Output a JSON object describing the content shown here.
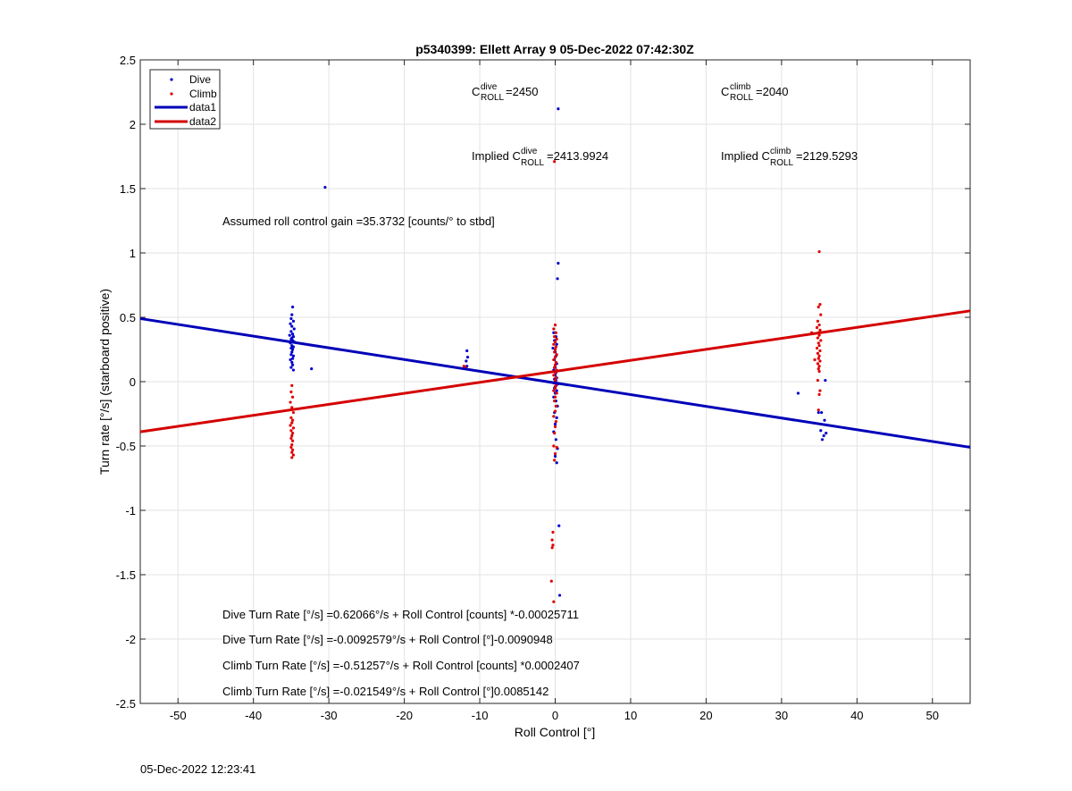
{
  "chart_data": {
    "type": "scatter",
    "title": "p5340399: Ellett Array 9 05-Dec-2022 07:42:30Z",
    "xlabel": "Roll Control [°]",
    "ylabel": "Turn rate [°/s] (starboard positive)",
    "xlim": [
      -55,
      55
    ],
    "ylim": [
      -2.5,
      2.5
    ],
    "xticks": [
      -50,
      -40,
      -30,
      -20,
      -10,
      0,
      10,
      20,
      30,
      40,
      50
    ],
    "xtick_labels": [
      "-50",
      "-40",
      "-30",
      "-20",
      "-10",
      "0",
      "10",
      "20",
      "30",
      "40",
      "50"
    ],
    "yticks": [
      2.5,
      2,
      1.5,
      1,
      0.5,
      0,
      -0.5,
      -1,
      -1.5,
      -2,
      -2.5
    ],
    "ytick_labels": [
      "2.5",
      "2",
      "1.5",
      "1",
      "0.5",
      "0",
      "-0.5",
      "-1",
      "-1.5",
      "-2",
      "-2.5"
    ],
    "grid": true,
    "legend_position": "top-left",
    "legend": [
      {
        "label": "Dive",
        "kind": "dot",
        "color": "#0000cc"
      },
      {
        "label": "Climb",
        "kind": "dot",
        "color": "#e00000"
      },
      {
        "label": "data1",
        "kind": "line",
        "color": "#0000b8"
      },
      {
        "label": "data2",
        "kind": "line",
        "color": "#d40000"
      }
    ],
    "series": [
      {
        "name": "Dive",
        "color": "#0000cc",
        "points": [
          [
            -34.8,
            0.58
          ],
          [
            -34.9,
            0.52
          ],
          [
            -35.0,
            0.49
          ],
          [
            -34.7,
            0.47
          ],
          [
            -35.1,
            0.45
          ],
          [
            -34.9,
            0.43
          ],
          [
            -34.6,
            0.41
          ],
          [
            -35.0,
            0.39
          ],
          [
            -34.8,
            0.37
          ],
          [
            -35.2,
            0.36
          ],
          [
            -34.7,
            0.35
          ],
          [
            -34.9,
            0.34
          ],
          [
            -35.0,
            0.33
          ],
          [
            -34.8,
            0.32
          ],
          [
            -34.6,
            0.31
          ],
          [
            -35.1,
            0.3
          ],
          [
            -34.9,
            0.28
          ],
          [
            -34.7,
            0.27
          ],
          [
            -35.0,
            0.26
          ],
          [
            -34.8,
            0.25
          ],
          [
            -34.9,
            0.23
          ],
          [
            -35.0,
            0.21
          ],
          [
            -34.7,
            0.2
          ],
          [
            -34.8,
            0.18
          ],
          [
            -35.1,
            0.17
          ],
          [
            -34.9,
            0.15
          ],
          [
            -34.8,
            0.13
          ],
          [
            -35.0,
            0.11
          ],
          [
            -34.7,
            0.09
          ],
          [
            -32.3,
            0.1
          ],
          [
            -30.5,
            1.51
          ],
          [
            -11.7,
            0.24
          ],
          [
            -11.6,
            0.19
          ],
          [
            -11.8,
            0.16
          ],
          [
            -11.7,
            0.12
          ],
          [
            0.4,
            2.12
          ],
          [
            0.4,
            0.92
          ],
          [
            0.3,
            0.8
          ],
          [
            -0.2,
            0.38
          ],
          [
            0.1,
            0.35
          ],
          [
            -0.1,
            0.32
          ],
          [
            0.2,
            0.29
          ],
          [
            -0.3,
            0.26
          ],
          [
            0.0,
            0.23
          ],
          [
            0.1,
            0.2
          ],
          [
            -0.1,
            0.17
          ],
          [
            0.2,
            0.14
          ],
          [
            0.0,
            0.11
          ],
          [
            -0.2,
            0.09
          ],
          [
            0.1,
            0.07
          ],
          [
            0.0,
            0.05
          ],
          [
            0.2,
            0.03
          ],
          [
            -0.1,
            0.02
          ],
          [
            0.1,
            0.01
          ],
          [
            0.0,
            0.0
          ],
          [
            -0.2,
            -0.01
          ],
          [
            0.3,
            -0.02
          ],
          [
            0.1,
            -0.03
          ],
          [
            0.0,
            -0.04
          ],
          [
            -0.1,
            -0.05
          ],
          [
            0.2,
            -0.07
          ],
          [
            0.0,
            -0.09
          ],
          [
            -0.2,
            -0.12
          ],
          [
            0.1,
            -0.15
          ],
          [
            0.3,
            -0.19
          ],
          [
            -0.1,
            -0.24
          ],
          [
            0.2,
            -0.28
          ],
          [
            0.0,
            -0.33
          ],
          [
            -0.2,
            -0.39
          ],
          [
            0.1,
            -0.45
          ],
          [
            0.3,
            -0.52
          ],
          [
            0.0,
            -0.58
          ],
          [
            0.2,
            -0.63
          ],
          [
            0.5,
            -1.12
          ],
          [
            0.6,
            -1.66
          ],
          [
            32.2,
            -0.09
          ],
          [
            35.8,
            0.01
          ],
          [
            35.3,
            -0.24
          ],
          [
            35.7,
            -0.3
          ],
          [
            34.9,
            -0.24
          ],
          [
            35.9,
            -0.4
          ],
          [
            35.6,
            -0.42
          ],
          [
            35.4,
            -0.45
          ],
          [
            35.2,
            -0.38
          ]
        ]
      },
      {
        "name": "Climb",
        "color": "#e00000",
        "points": [
          [
            -34.9,
            -0.03
          ],
          [
            -35.0,
            -0.08
          ],
          [
            -34.8,
            -0.12
          ],
          [
            -35.1,
            -0.16
          ],
          [
            -34.9,
            -0.2
          ],
          [
            -34.7,
            -0.24
          ],
          [
            -35.0,
            -0.28
          ],
          [
            -34.8,
            -0.3
          ],
          [
            -34.9,
            -0.32
          ],
          [
            -35.1,
            -0.34
          ],
          [
            -34.7,
            -0.36
          ],
          [
            -35.0,
            -0.38
          ],
          [
            -34.8,
            -0.4
          ],
          [
            -34.9,
            -0.42
          ],
          [
            -35.0,
            -0.44
          ],
          [
            -34.8,
            -0.46
          ],
          [
            -34.9,
            -0.49
          ],
          [
            -35.0,
            -0.51
          ],
          [
            -34.8,
            -0.53
          ],
          [
            -34.9,
            -0.55
          ],
          [
            -34.7,
            -0.57
          ],
          [
            -34.9,
            -0.59
          ],
          [
            -12.1,
            0.12
          ],
          [
            -11.9,
            0.11
          ],
          [
            0.0,
            0.44
          ],
          [
            -0.2,
            0.41
          ],
          [
            0.1,
            0.38
          ],
          [
            -0.1,
            0.35
          ],
          [
            0.2,
            0.33
          ],
          [
            0.0,
            0.31
          ],
          [
            -0.2,
            0.29
          ],
          [
            0.1,
            0.27
          ],
          [
            0.0,
            0.25
          ],
          [
            -0.1,
            0.23
          ],
          [
            0.2,
            0.21
          ],
          [
            0.0,
            0.19
          ],
          [
            -0.2,
            0.17
          ],
          [
            0.1,
            0.15
          ],
          [
            0.0,
            0.13
          ],
          [
            -0.1,
            0.11
          ],
          [
            0.2,
            0.09
          ],
          [
            0.0,
            0.07
          ],
          [
            -0.2,
            0.05
          ],
          [
            0.1,
            0.03
          ],
          [
            0.0,
            0.01
          ],
          [
            -0.1,
            -0.01
          ],
          [
            0.1,
            -0.03
          ],
          [
            0.0,
            -0.05
          ],
          [
            -0.2,
            -0.07
          ],
          [
            0.2,
            -0.09
          ],
          [
            0.0,
            -0.12
          ],
          [
            -0.1,
            -0.15
          ],
          [
            0.1,
            -0.19
          ],
          [
            0.0,
            -0.23
          ],
          [
            -0.2,
            -0.27
          ],
          [
            0.1,
            -0.31
          ],
          [
            0.0,
            -0.35
          ],
          [
            -0.1,
            -0.4
          ],
          [
            -0.1,
            1.71
          ],
          [
            -0.2,
            -0.5
          ],
          [
            0.2,
            -0.51
          ],
          [
            0.0,
            -0.56
          ],
          [
            -0.1,
            -0.61
          ],
          [
            -0.3,
            -1.17
          ],
          [
            -0.4,
            -1.23
          ],
          [
            -0.3,
            -1.27
          ],
          [
            -0.4,
            -1.29
          ],
          [
            -0.5,
            -1.55
          ],
          [
            -0.2,
            -1.71
          ],
          [
            35.0,
            1.01
          ],
          [
            35.1,
            0.6
          ],
          [
            34.9,
            0.58
          ],
          [
            35.2,
            0.52
          ],
          [
            34.8,
            0.47
          ],
          [
            35.0,
            0.44
          ],
          [
            34.7,
            0.42
          ],
          [
            35.1,
            0.4
          ],
          [
            34.9,
            0.38
          ],
          [
            35.0,
            0.36
          ],
          [
            34.8,
            0.34
          ],
          [
            35.2,
            0.32
          ],
          [
            34.9,
            0.3
          ],
          [
            35.0,
            0.28
          ],
          [
            34.7,
            0.26
          ],
          [
            35.1,
            0.24
          ],
          [
            34.8,
            0.22
          ],
          [
            35.0,
            0.2
          ],
          [
            34.9,
            0.18
          ],
          [
            35.1,
            0.16
          ],
          [
            34.8,
            0.14
          ],
          [
            35.0,
            0.12
          ],
          [
            34.9,
            0.1
          ],
          [
            35.0,
            0.08
          ],
          [
            34.4,
            0.17
          ],
          [
            34.0,
            0.38
          ],
          [
            34.8,
            0.01
          ],
          [
            35.1,
            -0.07
          ],
          [
            35.0,
            -0.1
          ],
          [
            34.9,
            -0.22
          ]
        ]
      },
      {
        "name": "data1",
        "type": "line",
        "color": "#0000b8",
        "x": [
          -55,
          55
        ],
        "y": [
          0.49,
          -0.51
        ]
      },
      {
        "name": "data2",
        "type": "line",
        "color": "#d40000",
        "x": [
          -55,
          55
        ],
        "y": [
          -0.39,
          0.55
        ]
      }
    ],
    "annotations": {
      "cdive": {
        "prefix": "C",
        "sup": "dive",
        "sub": "ROLL",
        "value": "=2450"
      },
      "cclimb": {
        "prefix": "C",
        "sup": "climb",
        "sub": "ROLL",
        "value": "=2040"
      },
      "implied_dive": {
        "prefix": "Implied C",
        "sup": "dive",
        "sub": "ROLL",
        "value": "=2413.9924"
      },
      "implied_climb": {
        "prefix": "Implied C",
        "sup": "climb",
        "sub": "ROLL",
        "value": "=2129.5293"
      },
      "gain": "Assumed roll control gain =35.3732 [counts/° to stbd]",
      "equations": [
        "Dive Turn Rate [°/s] =0.62066°/s + Roll Control [counts] *-0.00025711",
        "Dive Turn Rate [°/s] =-0.0092579°/s + Roll Control [°]-0.0090948",
        "Climb Turn Rate [°/s] =-0.51257°/s + Roll Control [counts] *0.0002407",
        "Climb Turn Rate [°/s] =-0.021549°/s + Roll Control [°]0.0085142"
      ]
    }
  },
  "footer": {
    "timestamp": "05-Dec-2022 12:23:41"
  }
}
